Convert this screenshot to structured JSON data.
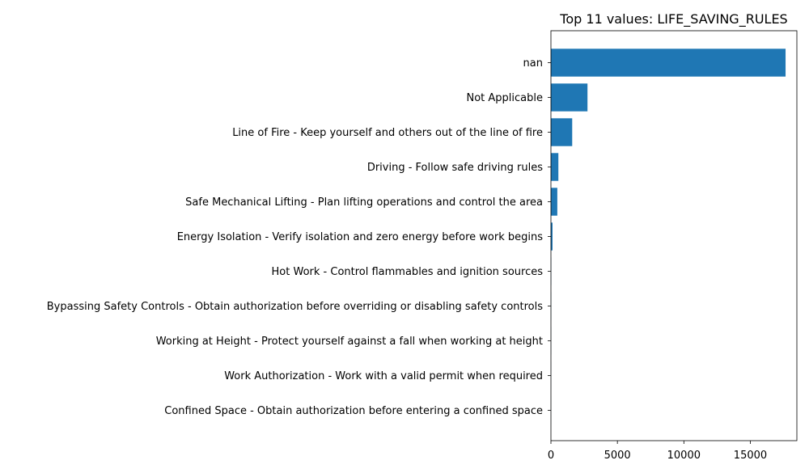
{
  "chart_data": {
    "type": "bar",
    "orientation": "horizontal",
    "title": "Top 11 values: LIFE_SAVING_RULES",
    "xlabel": "",
    "ylabel": "",
    "categories": [
      "nan",
      "Not Applicable",
      "Line of Fire - Keep yourself and others out of the line of fire",
      "Driving - Follow safe driving rules",
      "Safe Mechanical Lifting - Plan lifting operations and control the area",
      "Energy Isolation - Verify isolation and zero energy before work begins",
      "Hot Work - Control flammables and ignition sources",
      "Bypassing Safety Controls - Obtain authorization before overriding or disabling safety controls",
      "Working at Height - Protect yourself against a fall when working at height",
      "Work Authorization - Work with a valid permit when required",
      "Confined Space - Obtain authorization before entering a confined space"
    ],
    "values": [
      17650,
      2750,
      1600,
      560,
      480,
      120,
      15,
      12,
      10,
      8,
      5
    ],
    "xlim": [
      0,
      18500
    ],
    "xticks": [
      0,
      5000,
      10000,
      15000
    ],
    "xtick_labels": [
      "0",
      "5000",
      "10000",
      "15000"
    ],
    "bar_color": "#1f77b4",
    "grid": false,
    "legend": "none"
  }
}
